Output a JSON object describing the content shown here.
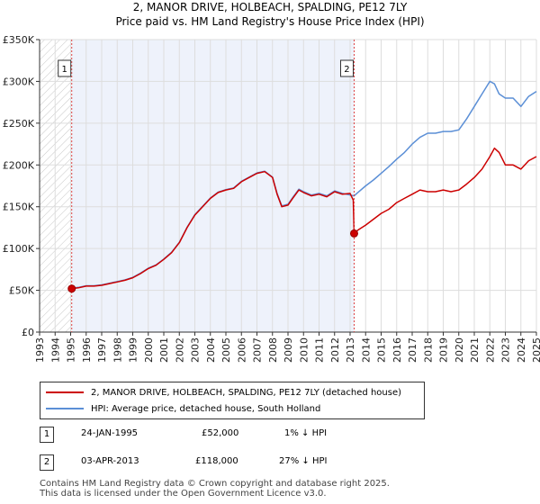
{
  "title": "2, MANOR DRIVE, HOLBEACH, SPALDING, PE12 7LY",
  "subtitle": "Price paid vs. HM Land Registry's House Price Index (HPI)",
  "chart_data": {
    "type": "line",
    "title": "2, MANOR DRIVE, HOLBEACH, SPALDING, PE12 7LY",
    "subtitle": "Price paid vs. HM Land Registry's House Price Index (HPI)",
    "xlabel": "",
    "ylabel": "",
    "xlim": [
      1993,
      2025
    ],
    "ylim": [
      0,
      350000
    ],
    "grid": true,
    "y_ticks": [
      0,
      50000,
      100000,
      150000,
      200000,
      250000,
      300000,
      350000
    ],
    "y_tick_labels": [
      "£0",
      "£50K",
      "£100K",
      "£150K",
      "£200K",
      "£250K",
      "£300K",
      "£350K"
    ],
    "x_ticks": [
      1993,
      1994,
      1995,
      1996,
      1997,
      1998,
      1999,
      2000,
      2001,
      2002,
      2003,
      2004,
      2005,
      2006,
      2007,
      2008,
      2009,
      2010,
      2011,
      2012,
      2013,
      2014,
      2015,
      2016,
      2017,
      2018,
      2019,
      2020,
      2021,
      2022,
      2023,
      2024,
      2025
    ],
    "x_tick_labels": [
      "1993",
      "1994",
      "1995",
      "1996",
      "1997",
      "1998",
      "1999",
      "2000",
      "2001",
      "2002",
      "2003",
      "2004",
      "2005",
      "2006",
      "2007",
      "2008",
      "2009",
      "2010",
      "2011",
      "2012",
      "2013",
      "2014",
      "2015",
      "2016",
      "2017",
      "2018",
      "2019",
      "2020",
      "2021",
      "2022",
      "2023",
      "2024",
      "2025"
    ],
    "series": [
      {
        "name": "2, MANOR DRIVE, HOLBEACH, SPALDING, PE12 7LY (detached house)",
        "color": "#cc0000",
        "x": [
          1995.07,
          1995.5,
          1996,
          1996.5,
          1997,
          1997.5,
          1998,
          1998.5,
          1999,
          1999.5,
          2000,
          2000.5,
          2001,
          2001.5,
          2002,
          2002.5,
          2003,
          2003.5,
          2004,
          2004.5,
          2005,
          2005.5,
          2006,
          2006.5,
          2007,
          2007.5,
          2008,
          2008.3,
          2008.6,
          2009,
          2009.3,
          2009.7,
          2010,
          2010.5,
          2011,
          2011.5,
          2012,
          2012.5,
          2013,
          2013.2,
          2013.26,
          2013.5,
          2014,
          2014.5,
          2015,
          2015.5,
          2016,
          2016.5,
          2017,
          2017.5,
          2018,
          2018.5,
          2019,
          2019.5,
          2020,
          2020.5,
          2021,
          2021.5,
          2022,
          2022.3,
          2022.6,
          2023,
          2023.5,
          2024,
          2024.5,
          2025
        ],
        "y": [
          52000,
          53000,
          55000,
          55000,
          56000,
          58000,
          60000,
          62000,
          65000,
          70000,
          76000,
          80000,
          87000,
          95000,
          107000,
          125000,
          140000,
          150000,
          160000,
          167000,
          170000,
          172000,
          180000,
          185000,
          190000,
          192000,
          185000,
          165000,
          150000,
          152000,
          160000,
          170000,
          167000,
          163000,
          165000,
          162000,
          168000,
          165000,
          166000,
          158000,
          118000,
          122000,
          128000,
          135000,
          142000,
          147000,
          155000,
          160000,
          165000,
          170000,
          168000,
          168000,
          170000,
          168000,
          170000,
          177000,
          185000,
          195000,
          210000,
          220000,
          215000,
          200000,
          200000,
          195000,
          205000,
          210000
        ]
      },
      {
        "name": "HPI: Average price, detached house, South Holland",
        "color": "#5b8fd6",
        "x": [
          1995.07,
          1995.5,
          1996,
          1996.5,
          1997,
          1997.5,
          1998,
          1998.5,
          1999,
          1999.5,
          2000,
          2000.5,
          2001,
          2001.5,
          2002,
          2002.5,
          2003,
          2003.5,
          2004,
          2004.5,
          2005,
          2005.5,
          2006,
          2006.5,
          2007,
          2007.5,
          2008,
          2008.3,
          2008.6,
          2009,
          2009.3,
          2009.7,
          2010,
          2010.5,
          2011,
          2011.5,
          2012,
          2012.5,
          2013,
          2013.26,
          2013.5,
          2014,
          2014.5,
          2015,
          2015.5,
          2016,
          2016.5,
          2017,
          2017.5,
          2018,
          2018.5,
          2019,
          2019.5,
          2020,
          2020.5,
          2021,
          2021.5,
          2022,
          2022.3,
          2022.6,
          2023,
          2023.5,
          2024,
          2024.5,
          2025
        ],
        "y": [
          52500,
          53500,
          55500,
          55500,
          56500,
          58500,
          60500,
          62500,
          65500,
          70500,
          76500,
          80500,
          87500,
          95500,
          107500,
          125500,
          140500,
          150500,
          160500,
          167500,
          170500,
          172500,
          180500,
          185500,
          190500,
          192500,
          185500,
          166000,
          151000,
          153000,
          161000,
          171000,
          168000,
          164000,
          166000,
          163000,
          169000,
          166000,
          164000,
          163000,
          167000,
          175000,
          182000,
          190000,
          198000,
          207000,
          215000,
          225000,
          233000,
          238000,
          238000,
          240000,
          240000,
          242000,
          255000,
          270000,
          285000,
          300000,
          297000,
          285000,
          280000,
          280000,
          270000,
          282000,
          288000
        ]
      }
    ],
    "annotations": [
      {
        "label": "1",
        "x": 1995.07,
        "y": 52000
      },
      {
        "label": "2",
        "x": 2013.26,
        "y": 118000
      }
    ],
    "hatched_ranges": [
      [
        1993,
        1995.07
      ]
    ],
    "shaded_ranges": [
      [
        1995.07,
        2013.26
      ]
    ]
  },
  "legend": {
    "items": [
      {
        "label": "2, MANOR DRIVE, HOLBEACH, SPALDING, PE12 7LY (detached house)",
        "color": "#cc0000"
      },
      {
        "label": "HPI: Average price, detached house, South Holland",
        "color": "#5b8fd6"
      }
    ]
  },
  "transactions": [
    {
      "num": "1",
      "date": "24-JAN-1995",
      "price": "£52,000",
      "hpi": "1% ↓ HPI"
    },
    {
      "num": "2",
      "date": "03-APR-2013",
      "price": "£118,000",
      "hpi": "27% ↓ HPI"
    }
  ],
  "footer": {
    "line1": "Contains HM Land Registry data © Crown copyright and database right 2025.",
    "line2": "This data is licensed under the Open Government Licence v3.0."
  }
}
